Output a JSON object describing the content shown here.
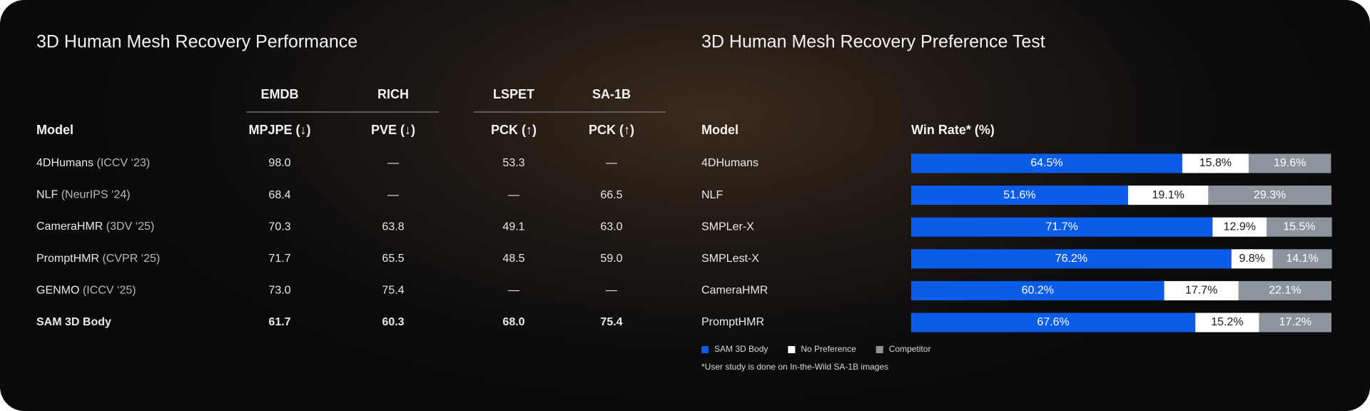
{
  "table": {
    "title": "3D Human Mesh Recovery Performance",
    "groups": [
      "EMDB",
      "RICH",
      "LSPET",
      "SA-1B"
    ],
    "columns": [
      "Model",
      "MPJPE (↓)",
      "PVE (↓)",
      "PCK (↑)",
      "PCK (↑)"
    ],
    "rows": [
      {
        "name": "4DHumans",
        "venue": "(ICCV ‘23)",
        "cells": [
          "98.0",
          "—",
          "53.3",
          "—"
        ]
      },
      {
        "name": "NLF",
        "venue": "(NeurIPS ‘24)",
        "cells": [
          "68.4",
          "—",
          "—",
          "66.5"
        ]
      },
      {
        "name": "CameraHMR",
        "venue": "(3DV ‘25)",
        "cells": [
          "70.3",
          "63.8",
          "49.1",
          "63.0"
        ]
      },
      {
        "name": "PromptHMR",
        "venue": "(CVPR ‘25)",
        "cells": [
          "71.7",
          "65.5",
          "48.5",
          "59.0"
        ]
      },
      {
        "name": "GENMO",
        "venue": "(ICCV ‘25)",
        "cells": [
          "73.0",
          "75.4",
          "—",
          "—"
        ]
      },
      {
        "name": "SAM 3D Body",
        "cells": [
          "61.7",
          "60.3",
          "68.0",
          "75.4"
        ],
        "bold": true
      }
    ]
  },
  "chart_data": {
    "type": "bar",
    "orientation": "horizontal",
    "stacked": true,
    "title": "3D Human Mesh Recovery Preference Test",
    "category_header": "Model",
    "value_header": "Win Rate* (%)",
    "categories": [
      "4DHumans",
      "NLF",
      "SMPLer-X",
      "SMPLest-X",
      "CameraHMR",
      "PromptHMR"
    ],
    "xlim": [
      0,
      100
    ],
    "series": [
      {
        "name": "SAM 3D Body",
        "color": "#0b5ce8",
        "values": [
          64.5,
          51.6,
          71.7,
          76.2,
          60.2,
          67.6
        ],
        "value_labels": [
          "64.5%",
          "51.6%",
          "71.7%",
          "76.2%",
          "60.2%",
          "67.6%"
        ]
      },
      {
        "name": "No Preference",
        "color": "#ffffff",
        "values": [
          15.8,
          19.1,
          12.9,
          9.8,
          17.7,
          15.2
        ],
        "value_labels": [
          "15.8%",
          "19.1%",
          "12.9%",
          "9.8%",
          "17.7%",
          "15.2%"
        ]
      },
      {
        "name": "Competitor",
        "color": "#8c959e",
        "values": [
          19.6,
          29.3,
          15.5,
          14.1,
          22.1,
          17.2
        ],
        "value_labels": [
          "19.6%",
          "29.3%",
          "15.5%",
          "14.1%",
          "22.1%",
          "17.2%"
        ]
      }
    ],
    "footnote": "*User study is done on In-the-Wild SA-1B images"
  }
}
